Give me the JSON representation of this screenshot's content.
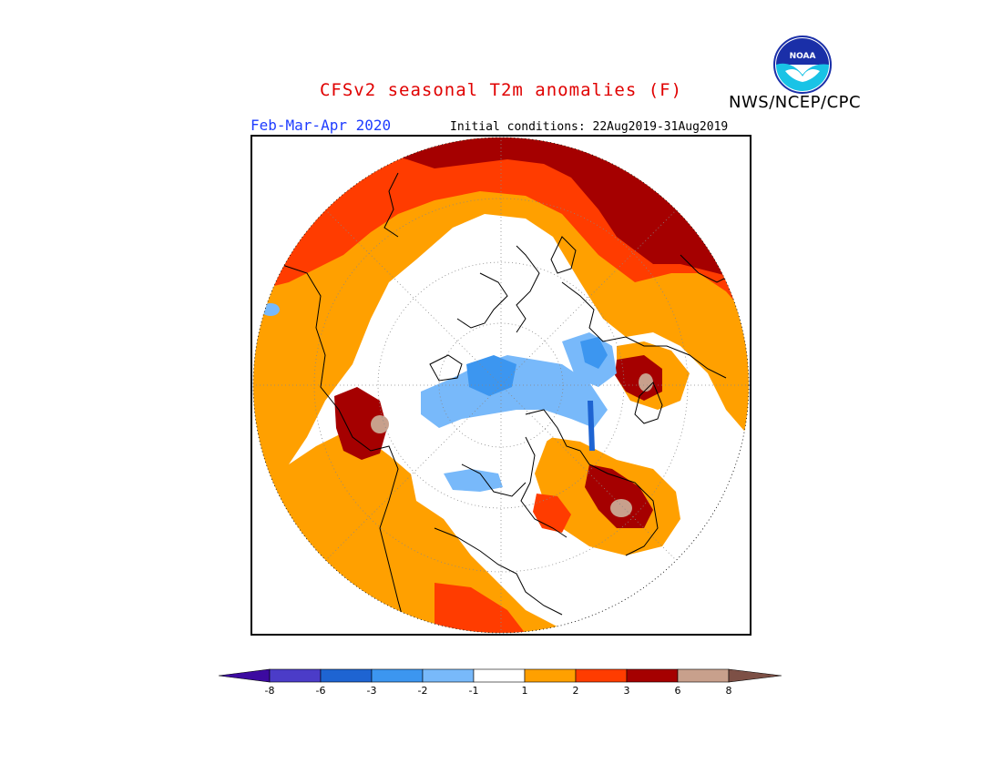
{
  "header": {
    "title": "CFSv2 seasonal T2m anomalies (F)",
    "agency": "NWS/NCEP/CPC",
    "logo_text": "NOAA",
    "period": "Feb-Mar-Apr 2020",
    "initial_conditions": "Initial conditions: 22Aug2019-31Aug2019"
  },
  "legend": {
    "bins": [
      {
        "range": "< -8",
        "color": "#3c0aa0"
      },
      {
        "range": "-8 to -6",
        "color": "#4b3cc8"
      },
      {
        "range": "-6 to -3",
        "color": "#1e64d2"
      },
      {
        "range": "-3 to -2",
        "color": "#3c96f0"
      },
      {
        "range": "-2 to -1",
        "color": "#78b9fa"
      },
      {
        "range": "-1 to 1",
        "color": "#ffffff"
      },
      {
        "range": "1 to 2",
        "color": "#ffa000"
      },
      {
        "range": "2 to 3",
        "color": "#ff3c00"
      },
      {
        "range": "3 to 6",
        "color": "#a50000"
      },
      {
        "range": "6 to 8",
        "color": "#c8a08c"
      },
      {
        "range": "> 8",
        "color": "#7d5046"
      }
    ],
    "ticks": [
      "-8",
      "-6",
      "-3",
      "-2",
      "-1",
      "1",
      "2",
      "3",
      "6",
      "8"
    ]
  },
  "colors": {
    "title": "#e00000",
    "period": "#1e3cff",
    "warm1": "#ffa000",
    "warm2": "#ff3c00",
    "warm3": "#a50000",
    "warm4": "#c8a08c",
    "warm5": "#7d5046",
    "cool1": "#78b9fa",
    "cool2": "#3c96f0",
    "cool3": "#1e64d2"
  },
  "map": {
    "projection": "north-polar-stereographic",
    "field": "2m temperature anomaly (F)"
  }
}
